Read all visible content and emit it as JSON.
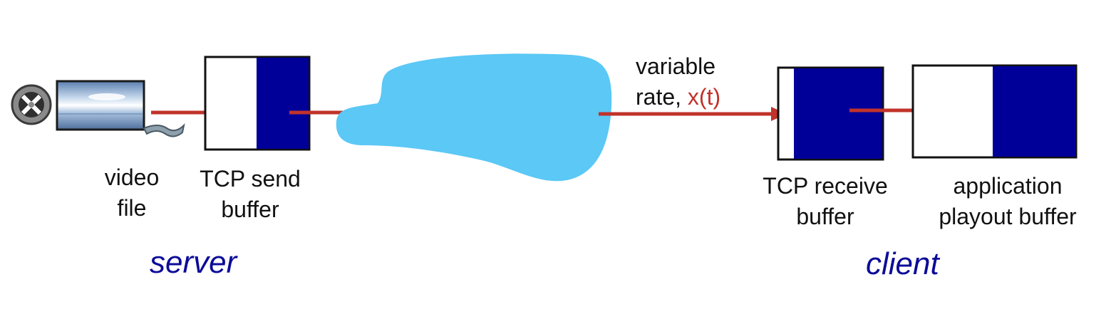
{
  "colors": {
    "arrow": "#c0332b",
    "buffer_fill": "#000099",
    "network_cloud": "#5bc8f5",
    "side_label": "#0b0b99",
    "rate_highlight": "#c0332b"
  },
  "server": {
    "label": "server",
    "video_file": {
      "icon": "film-reel-icon",
      "line1": "video",
      "line2": "file"
    },
    "send_buffer": {
      "line1": "TCP send",
      "line2": "buffer"
    }
  },
  "network": {
    "icon": "network-cloud",
    "rate_line1": "variable",
    "rate_line2_prefix": "rate, ",
    "rate_symbol": "x(t)"
  },
  "client": {
    "label": "client",
    "receive_buffer": {
      "line1": "TCP receive",
      "line2": "buffer"
    },
    "playout_buffer": {
      "line1": "application",
      "line2": "playout buffer"
    }
  }
}
